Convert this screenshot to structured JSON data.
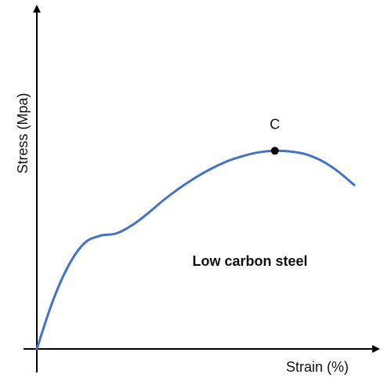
{
  "chart_data": {
    "type": "line",
    "title": "",
    "xlabel": "Strain (%)",
    "ylabel": "Stress (Mpa)",
    "x_ticks": [],
    "y_ticks": [],
    "grid": false,
    "legend": "none",
    "line_color": "#4472c4",
    "axis_color": "#000000",
    "series": [
      {
        "x": [
          0,
          1,
          2,
          3,
          4,
          5,
          6,
          7,
          8,
          9,
          10,
          11,
          12,
          13,
          14,
          15,
          16,
          17,
          18,
          19,
          20
        ],
        "y": [
          0,
          3.2,
          5.6,
          7.1,
          7.6,
          7.75,
          8.3,
          9.1,
          10.0,
          10.8,
          11.5,
          12.1,
          12.6,
          12.95,
          13.2,
          13.3,
          13.25,
          13.05,
          12.6,
          11.9,
          11.0
        ]
      }
    ],
    "highlight_point": {
      "label": "C",
      "x": 15,
      "y": 13.3
    },
    "annotation": "Low carbon steel"
  }
}
